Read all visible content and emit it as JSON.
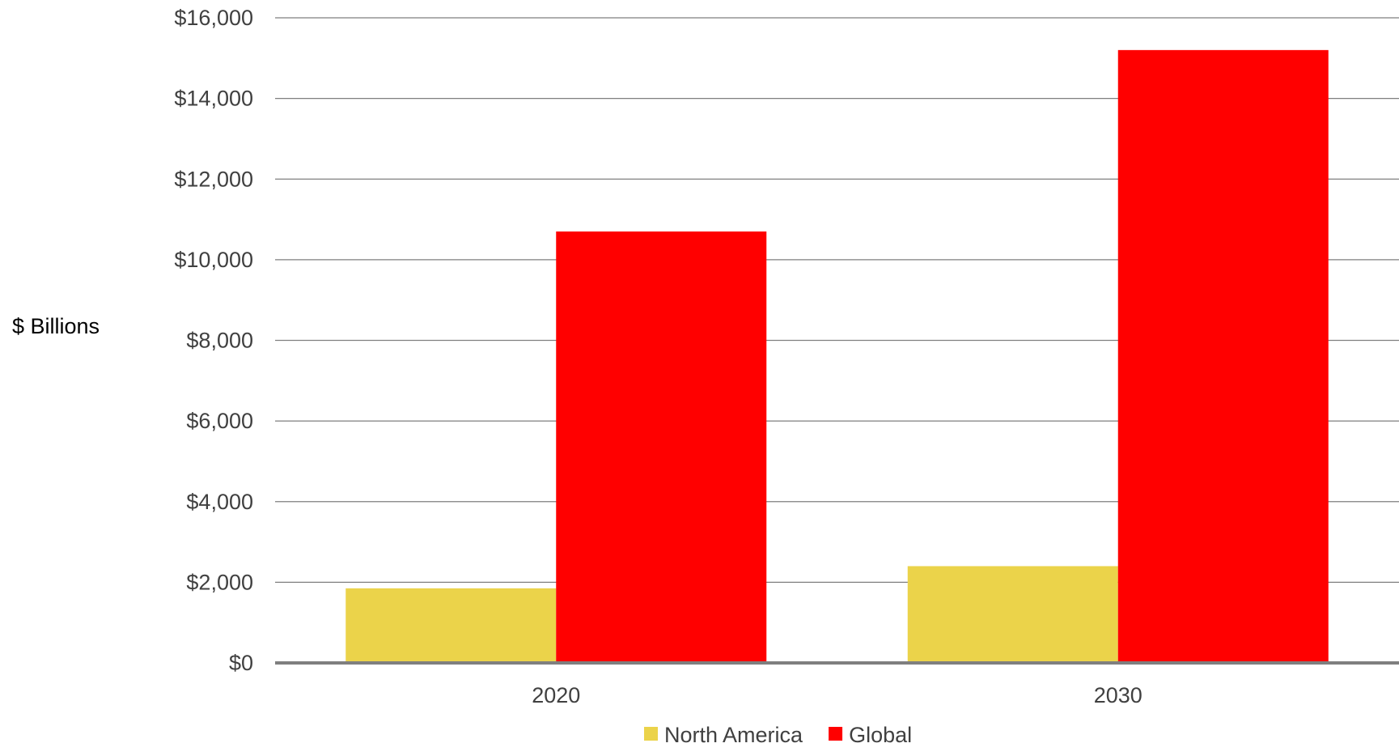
{
  "chart_data": {
    "type": "bar",
    "title": "",
    "xlabel": "",
    "ylabel": "$ Billions",
    "categories": [
      "2020",
      "2030"
    ],
    "series": [
      {
        "name": "North America",
        "values": [
          1850,
          2400
        ],
        "color": "#EBD34A"
      },
      {
        "name": "Global",
        "values": [
          10700,
          15200
        ],
        "color": "#FF0000"
      }
    ],
    "ylim": [
      0,
      16000
    ],
    "yticks": [
      0,
      2000,
      4000,
      6000,
      8000,
      10000,
      12000,
      14000,
      16000
    ],
    "ytick_labels": [
      "$0",
      "$2,000",
      "$4,000",
      "$6,000",
      "$8,000",
      "$10,000",
      "$12,000",
      "$14,000",
      "$16,000"
    ],
    "grid": true,
    "legend_position": "bottom"
  }
}
